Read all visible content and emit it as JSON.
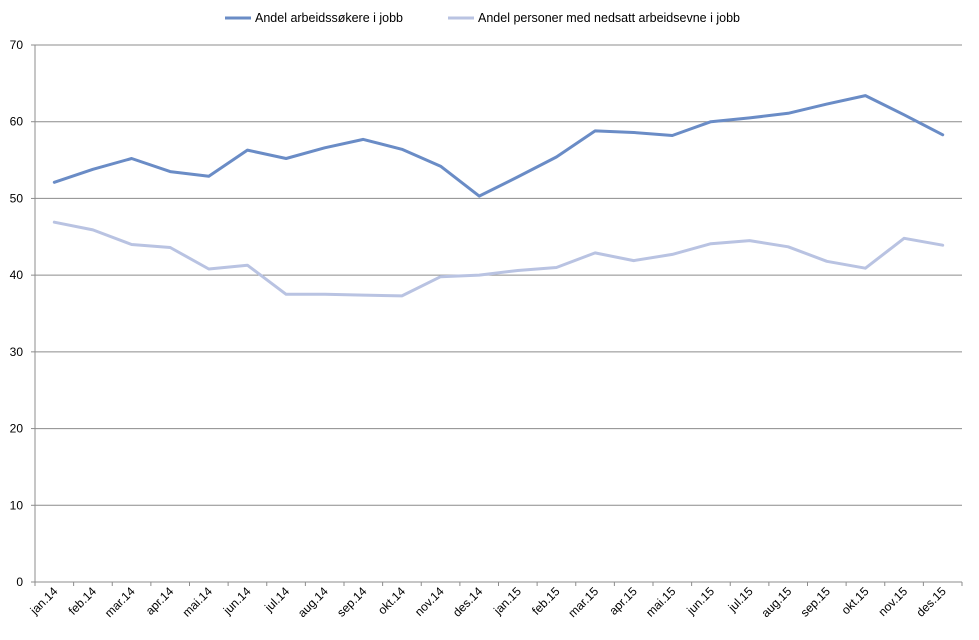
{
  "chart_data": {
    "type": "line",
    "title": "",
    "xlabel": "",
    "ylabel": "",
    "categories": [
      "jan.14",
      "feb.14",
      "mar.14",
      "apr.14",
      "mai.14",
      "jun.14",
      "jul.14",
      "aug.14",
      "sep.14",
      "okt.14",
      "nov.14",
      "des.14",
      "jan.15",
      "feb.15",
      "mar.15",
      "apr.15",
      "mai.15",
      "jun.15",
      "jul.15",
      "aug.15",
      "sep.15",
      "okt.15",
      "nov.15",
      "des.15"
    ],
    "ylim": [
      0,
      70
    ],
    "yticks": [
      0,
      10,
      20,
      30,
      40,
      50,
      60,
      70
    ],
    "grid": true,
    "legend_position": "top",
    "series": [
      {
        "name": "Andel arbeidssøkere i jobb",
        "color": "#6a8cc6",
        "values": [
          52.1,
          53.8,
          55.2,
          53.5,
          52.9,
          56.3,
          55.2,
          56.6,
          57.7,
          56.4,
          54.2,
          50.3,
          52.8,
          55.4,
          58.8,
          58.6,
          58.2,
          60.0,
          60.5,
          61.1,
          62.3,
          63.4,
          60.9,
          58.3
        ]
      },
      {
        "name": "Andel personer med nedsatt arbeidsevne i jobb",
        "color": "#b9c3e2",
        "values": [
          46.9,
          45.9,
          44.0,
          43.6,
          40.8,
          41.3,
          37.5,
          37.5,
          37.4,
          37.3,
          39.8,
          40.0,
          40.6,
          41.0,
          42.9,
          41.9,
          42.7,
          44.1,
          44.5,
          43.7,
          41.8,
          40.9,
          44.8,
          43.9
        ]
      }
    ]
  }
}
